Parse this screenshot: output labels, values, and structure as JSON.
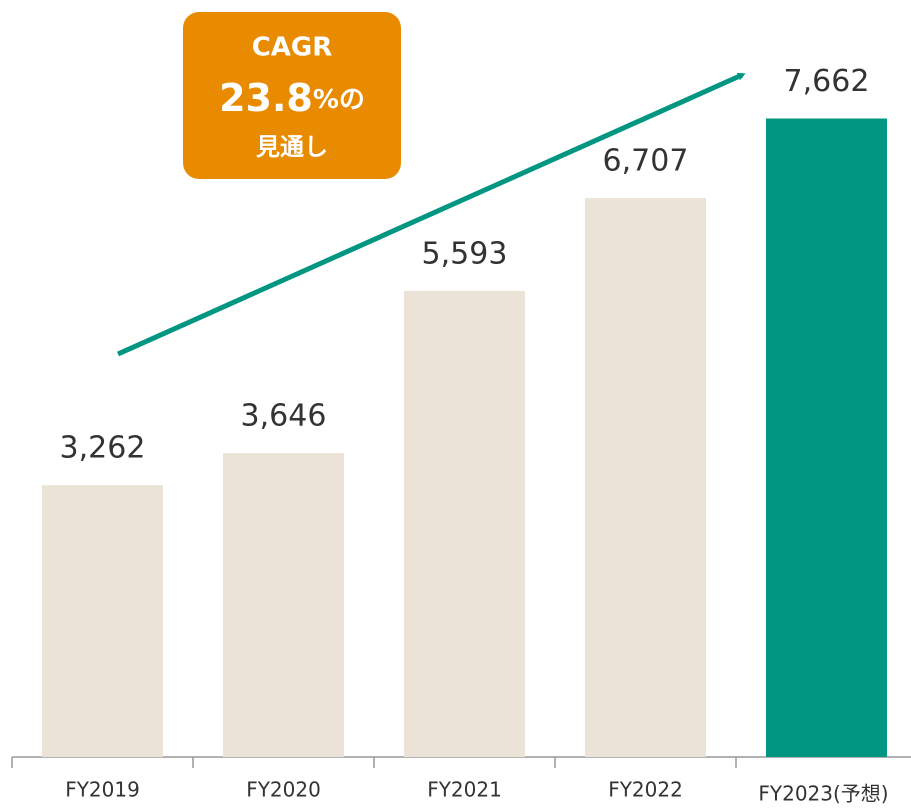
{
  "chart_data": {
    "type": "bar",
    "categories": [
      "FY2019",
      "FY2020",
      "FY2021",
      "FY2022",
      "FY2023(予想)"
    ],
    "values": [
      3262,
      3646,
      5593,
      6707,
      7662
    ],
    "value_labels": [
      "3,262",
      "3,646",
      "5,593",
      "6,707",
      "7,662"
    ],
    "colors": [
      "#ebe3d7",
      "#ebe3d7",
      "#ebe3d7",
      "#ebe3d7",
      "#009682"
    ],
    "ylim": [
      0,
      9000
    ],
    "annotation": {
      "line1": "CAGR",
      "rate": "23.8",
      "suffix": "%の",
      "line3": "見通し"
    }
  }
}
